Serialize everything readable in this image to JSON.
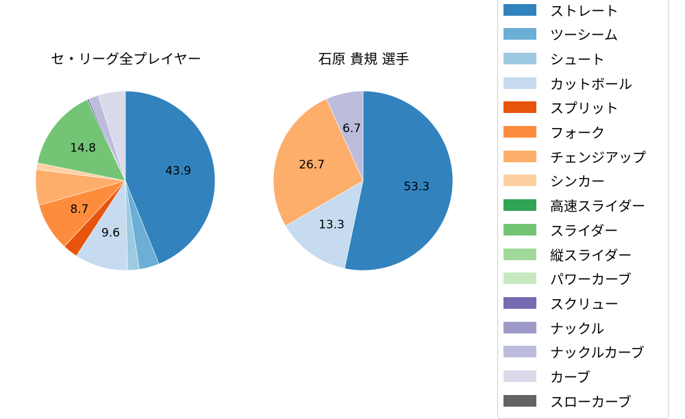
{
  "chart_data": [
    {
      "type": "pie",
      "title": "セ・リーグ全プレイヤー",
      "start_angle": 90,
      "direction": "clockwise",
      "categories": [
        "ストレート",
        "ツーシーム",
        "シュート",
        "カットボール",
        "スプリット",
        "フォーク",
        "チェンジアップ",
        "シンカー",
        "高速スライダー",
        "スライダー",
        "縦スライダー",
        "パワーカーブ",
        "スクリュー",
        "ナックル",
        "ナックルカーブ",
        "カーブ",
        "スローカーブ"
      ],
      "values": [
        43.9,
        3.6,
        2.1,
        9.6,
        2.7,
        8.7,
        6.4,
        1.2,
        0,
        14.8,
        0,
        0,
        0.3,
        0,
        1.8,
        4.9,
        0
      ],
      "labels_shown": [
        "43.9",
        "9.6",
        "8.7",
        "14.8"
      ]
    },
    {
      "type": "pie",
      "title": "石原 貴規  選手",
      "start_angle": 90,
      "direction": "clockwise",
      "categories": [
        "ストレート",
        "カットボール",
        "チェンジアップ",
        "ナックルカーブ"
      ],
      "values": [
        53.3,
        13.3,
        26.7,
        6.7
      ],
      "labels_shown": [
        "53.3",
        "13.3",
        "26.7",
        "6.7"
      ]
    }
  ],
  "titles": {
    "left": "セ・リーグ全プレイヤー",
    "right": "石原 貴規  選手"
  },
  "legend": {
    "items": [
      {
        "label": "ストレート",
        "color": "#3182bd"
      },
      {
        "label": "ツーシーム",
        "color": "#6baed6"
      },
      {
        "label": "シュート",
        "color": "#9ecae1"
      },
      {
        "label": "カットボール",
        "color": "#c6dbef"
      },
      {
        "label": "スプリット",
        "color": "#e6550d"
      },
      {
        "label": "フォーク",
        "color": "#fd8d3c"
      },
      {
        "label": "チェンジアップ",
        "color": "#fdae6b"
      },
      {
        "label": "シンカー",
        "color": "#fdd0a2"
      },
      {
        "label": "高速スライダー",
        "color": "#31a354"
      },
      {
        "label": "スライダー",
        "color": "#74c476"
      },
      {
        "label": "縦スライダー",
        "color": "#a1d99b"
      },
      {
        "label": "パワーカーブ",
        "color": "#c7e9c0"
      },
      {
        "label": "スクリュー",
        "color": "#756bb1"
      },
      {
        "label": "ナックル",
        "color": "#9e9ac8"
      },
      {
        "label": "ナックルカーブ",
        "color": "#bcbddc"
      },
      {
        "label": "カーブ",
        "color": "#dadaeb"
      },
      {
        "label": "スローカーブ",
        "color": "#636363"
      }
    ]
  }
}
